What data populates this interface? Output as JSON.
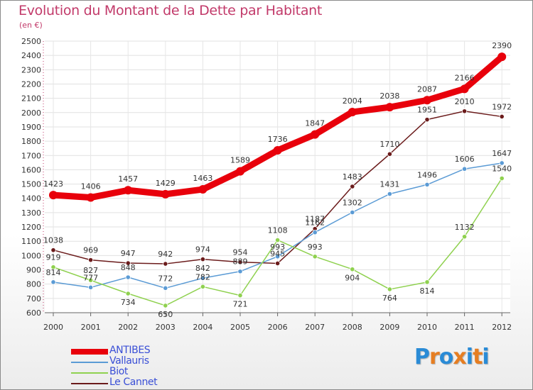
{
  "page": {
    "title": "Evolution du Montant de la Dette par Habitant",
    "subtitle": "(en €)"
  },
  "chart_data": {
    "type": "line",
    "title": "Evolution du Montant de la Dette par Habitant",
    "subtitle": "(en €)",
    "xlabel": "",
    "ylabel": "",
    "x": [
      "2000",
      "2001",
      "2002",
      "2003",
      "2004",
      "2005",
      "2006",
      "2007",
      "2008",
      "2009",
      "2010",
      "2011",
      "2012"
    ],
    "ylim": [
      600,
      2500
    ],
    "yticks": [
      600,
      700,
      800,
      900,
      1000,
      1100,
      1200,
      1300,
      1400,
      1500,
      1600,
      1700,
      1800,
      1900,
      2000,
      2100,
      2200,
      2300,
      2400,
      2500
    ],
    "grid": true,
    "legend_position": "bottom-left",
    "series": [
      {
        "name": "ANTIBES",
        "color": "#e8000b",
        "values": [
          1423,
          1406,
          1457,
          1429,
          1463,
          1589,
          1736,
          1847,
          2004,
          2038,
          2087,
          2166,
          2390
        ]
      },
      {
        "name": "Vallauris",
        "color": "#5b9bd5",
        "values": [
          814,
          777,
          848,
          772,
          842,
          889,
          993,
          1162,
          1302,
          1431,
          1496,
          1606,
          1647
        ]
      },
      {
        "name": "Biot",
        "color": "#8fd14f",
        "values": [
          919,
          827,
          734,
          650,
          782,
          721,
          1108,
          993,
          904,
          764,
          814,
          1132,
          1540
        ]
      },
      {
        "name": "Le Cannet",
        "color": "#6b1b1b",
        "values": [
          1038,
          969,
          947,
          942,
          974,
          954,
          945,
          1187,
          1483,
          1710,
          1951,
          2010,
          1972
        ]
      }
    ]
  },
  "logo": {
    "letters": [
      "P",
      "r",
      "o",
      "x",
      "i",
      "t",
      "i"
    ],
    "colors": [
      "#2a8bd6",
      "#e67e22",
      "#2a8bd6",
      "#e67e22",
      "#2a8bd6",
      "#e67e22",
      "#2a8bd6"
    ]
  }
}
